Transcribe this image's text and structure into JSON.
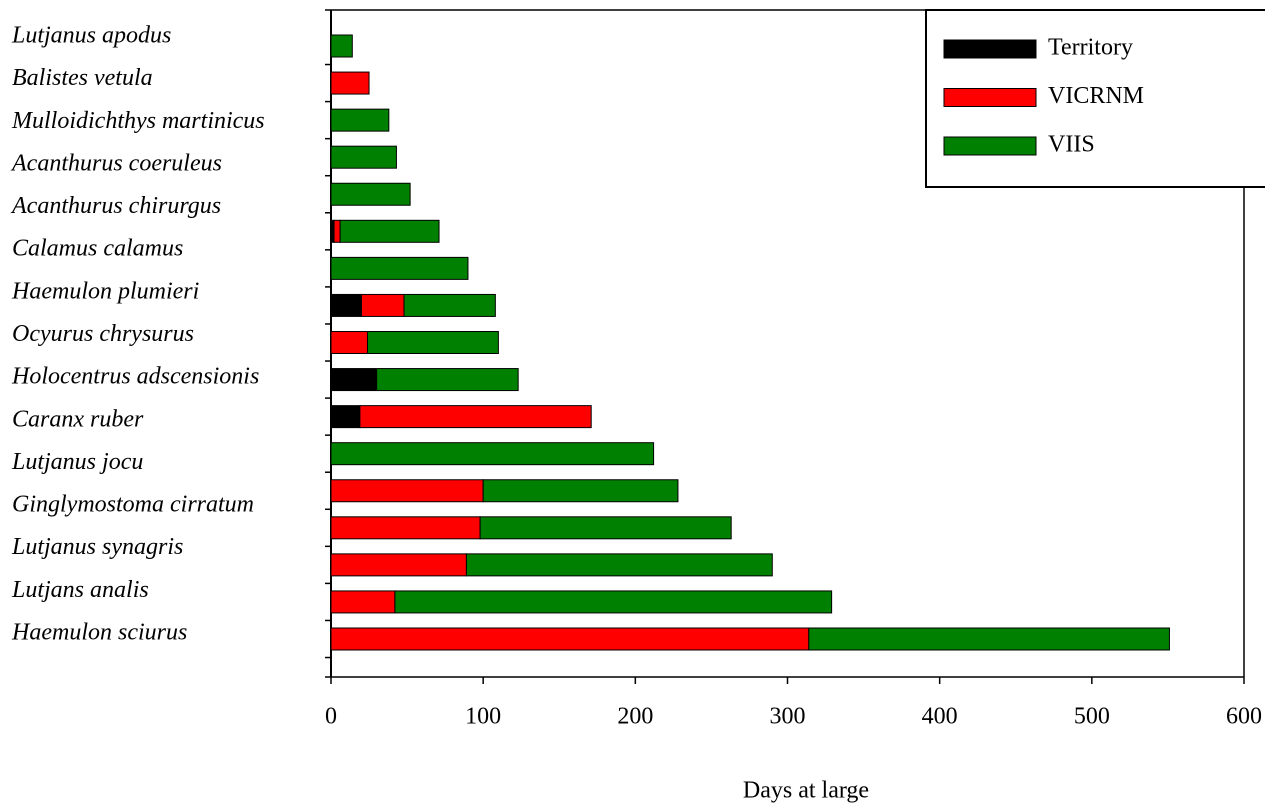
{
  "chart_data": {
    "type": "bar",
    "orientation": "horizontal",
    "stacked": true,
    "xlabel": "Days at large",
    "categories": [
      "Lutjanus apodus",
      "Balistes vetula",
      "Mulloidichthys martinicus",
      "Acanthurus coeruleus",
      "Acanthurus chirurgus",
      "Calamus calamus",
      null,
      "Haemulon plumieri",
      "Ocyurus chrysurus",
      "Holocentrus adscensionis",
      "Caranx ruber",
      "Lutjanus jocu",
      "Ginglymostoma cirratum",
      null,
      "Lutjanus synagris",
      "Lutjans  analis",
      "Haemulon sciurus"
    ],
    "series": [
      {
        "name": "Territory",
        "color": "#000000",
        "values": [
          0,
          0,
          0,
          0,
          0,
          2,
          0,
          20,
          0,
          30,
          19,
          0,
          0,
          0,
          0,
          0,
          0
        ]
      },
      {
        "name": "VICRNM",
        "color": "#ff0000",
        "values": [
          0,
          25,
          0,
          0,
          0,
          4,
          0,
          28,
          24,
          0,
          152,
          0,
          100,
          98,
          89,
          42,
          314
        ]
      },
      {
        "name": "VIIS",
        "color": "#008000",
        "values": [
          14,
          0,
          38,
          43,
          52,
          65,
          90,
          60,
          86,
          93,
          0,
          212,
          128,
          165,
          201,
          287,
          237
        ]
      }
    ],
    "xlim": [
      0,
      600
    ],
    "xticks": [
      0,
      100,
      200,
      300,
      400,
      500,
      600
    ],
    "legend": "upper right"
  }
}
